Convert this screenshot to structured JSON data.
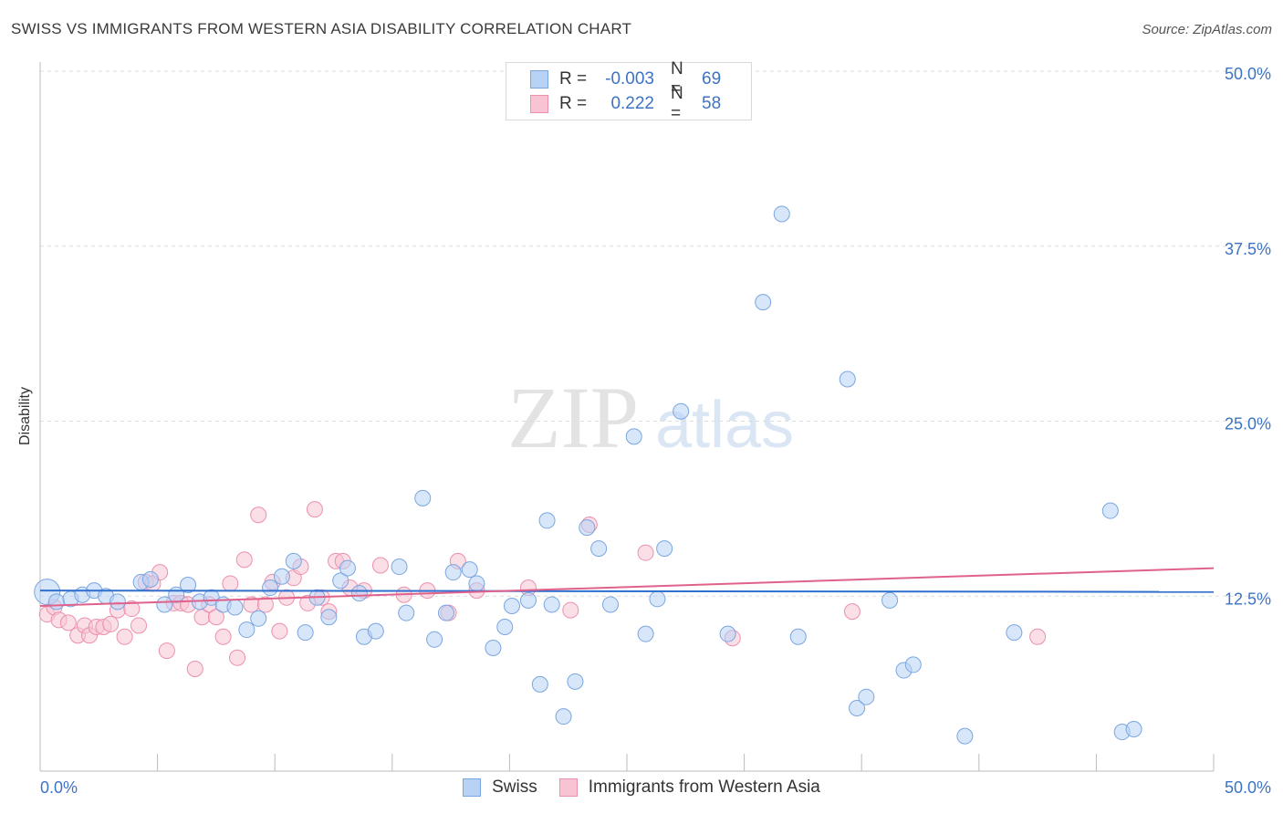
{
  "title": "SWISS VS IMMIGRANTS FROM WESTERN ASIA DISABILITY CORRELATION CHART",
  "source": "Source: ZipAtlas.com",
  "watermark": {
    "zip": "ZIP",
    "atlas": "atlas"
  },
  "colors": {
    "swiss_fill": "#b8d2f5",
    "swiss_stroke": "#7aa6e0",
    "swiss_line": "#2f6fce",
    "immig_fill": "#f8c4d4",
    "immig_stroke": "#ec90ad",
    "immig_line": "#e0628c",
    "tick_label": "#3d73c4",
    "grid": "#dddddd"
  },
  "legend": {
    "rows": [
      {
        "r_label": "R =",
        "r_value": "-0.003",
        "n_label": "N =",
        "n_value": "69"
      },
      {
        "r_label": "R =",
        "r_value": "0.222",
        "n_label": "N =",
        "n_value": "58"
      }
    ]
  },
  "bottom_legend": {
    "swiss": "Swiss",
    "immig": "Immigrants from Western Asia"
  },
  "chart_data": {
    "type": "scatter",
    "title": "SWISS VS IMMIGRANTS FROM WESTERN ASIA DISABILITY CORRELATION CHART",
    "xlabel": "",
    "ylabel": "Disability",
    "xlim": [
      0,
      50
    ],
    "ylim": [
      0,
      50
    ],
    "x_tick_labels": [
      "0.0%",
      "50.0%"
    ],
    "y_ticks": [
      12.5,
      25.0,
      37.5,
      50.0
    ],
    "y_tick_labels": [
      "12.5%",
      "25.0%",
      "37.5%",
      "50.0%"
    ],
    "grid": true,
    "legend_placement": "top-center",
    "series": [
      {
        "name": "Swiss",
        "r": -0.003,
        "n": 69,
        "trend": [
          [
            0,
            12.9
          ],
          [
            50,
            12.8
          ]
        ],
        "points": [
          [
            0.3,
            12.8
          ],
          [
            0.7,
            12.1
          ],
          [
            1.3,
            12.3
          ],
          [
            1.8,
            12.6
          ],
          [
            2.3,
            12.9
          ],
          [
            2.8,
            12.5
          ],
          [
            3.3,
            12.1
          ],
          [
            4.3,
            13.5
          ],
          [
            4.7,
            13.7
          ],
          [
            5.3,
            11.9
          ],
          [
            5.8,
            12.6
          ],
          [
            6.3,
            13.3
          ],
          [
            6.8,
            12.1
          ],
          [
            7.3,
            12.4
          ],
          [
            7.8,
            11.9
          ],
          [
            8.3,
            11.7
          ],
          [
            8.8,
            10.1
          ],
          [
            9.3,
            10.9
          ],
          [
            9.8,
            13.1
          ],
          [
            10.3,
            13.9
          ],
          [
            10.8,
            15.0
          ],
          [
            11.3,
            9.9
          ],
          [
            11.8,
            12.4
          ],
          [
            12.3,
            11.0
          ],
          [
            12.8,
            13.6
          ],
          [
            13.1,
            14.5
          ],
          [
            13.6,
            12.7
          ],
          [
            13.8,
            9.6
          ],
          [
            14.3,
            10.0
          ],
          [
            15.3,
            14.6
          ],
          [
            15.6,
            11.3
          ],
          [
            16.3,
            19.5
          ],
          [
            16.8,
            9.4
          ],
          [
            17.3,
            11.3
          ],
          [
            17.6,
            14.2
          ],
          [
            18.3,
            14.4
          ],
          [
            18.6,
            13.4
          ],
          [
            19.3,
            8.8
          ],
          [
            19.8,
            10.3
          ],
          [
            20.1,
            11.8
          ],
          [
            20.8,
            12.2
          ],
          [
            21.3,
            6.2
          ],
          [
            21.6,
            17.9
          ],
          [
            21.8,
            11.9
          ],
          [
            22.3,
            3.9
          ],
          [
            22.8,
            6.4
          ],
          [
            23.3,
            17.4
          ],
          [
            23.8,
            15.9
          ],
          [
            24.3,
            11.9
          ],
          [
            25.3,
            23.9
          ],
          [
            25.8,
            9.8
          ],
          [
            26.3,
            12.3
          ],
          [
            26.6,
            15.9
          ],
          [
            27.3,
            25.7
          ],
          [
            29.3,
            9.8
          ],
          [
            30.8,
            33.5
          ],
          [
            31.6,
            39.8
          ],
          [
            32.3,
            9.6
          ],
          [
            34.4,
            28.0
          ],
          [
            34.8,
            4.5
          ],
          [
            35.2,
            5.3
          ],
          [
            36.2,
            12.2
          ],
          [
            36.8,
            7.2
          ],
          [
            37.2,
            7.6
          ],
          [
            39.4,
            2.5
          ],
          [
            41.5,
            9.9
          ],
          [
            45.6,
            18.6
          ],
          [
            46.1,
            2.8
          ],
          [
            46.6,
            3.0
          ]
        ]
      },
      {
        "name": "Immigrants from Western Asia",
        "r": 0.222,
        "n": 58,
        "trend": [
          [
            0,
            11.8
          ],
          [
            50,
            14.5
          ]
        ],
        "points": [
          [
            0.3,
            11.2
          ],
          [
            0.6,
            11.7
          ],
          [
            0.8,
            10.8
          ],
          [
            1.2,
            10.6
          ],
          [
            1.6,
            9.7
          ],
          [
            1.9,
            10.4
          ],
          [
            2.1,
            9.7
          ],
          [
            2.4,
            10.3
          ],
          [
            2.7,
            10.3
          ],
          [
            3.0,
            10.5
          ],
          [
            3.3,
            11.5
          ],
          [
            3.6,
            9.6
          ],
          [
            3.9,
            11.6
          ],
          [
            4.2,
            10.4
          ],
          [
            4.5,
            13.5
          ],
          [
            4.8,
            13.4
          ],
          [
            5.1,
            14.2
          ],
          [
            5.4,
            8.6
          ],
          [
            5.7,
            12.0
          ],
          [
            6.0,
            12.0
          ],
          [
            6.3,
            11.9
          ],
          [
            6.6,
            7.3
          ],
          [
            6.9,
            11.0
          ],
          [
            7.2,
            11.9
          ],
          [
            7.5,
            11.0
          ],
          [
            7.8,
            9.6
          ],
          [
            8.1,
            13.4
          ],
          [
            8.4,
            8.1
          ],
          [
            8.7,
            15.1
          ],
          [
            9.0,
            11.9
          ],
          [
            9.3,
            18.3
          ],
          [
            9.6,
            11.9
          ],
          [
            9.9,
            13.5
          ],
          [
            10.2,
            10.0
          ],
          [
            10.5,
            12.4
          ],
          [
            10.8,
            13.8
          ],
          [
            11.1,
            14.6
          ],
          [
            11.4,
            12.0
          ],
          [
            11.7,
            18.7
          ],
          [
            12.0,
            12.4
          ],
          [
            12.3,
            11.4
          ],
          [
            12.6,
            15.0
          ],
          [
            12.9,
            15.0
          ],
          [
            13.2,
            13.1
          ],
          [
            13.8,
            12.9
          ],
          [
            14.5,
            14.7
          ],
          [
            15.5,
            12.6
          ],
          [
            16.5,
            12.9
          ],
          [
            17.4,
            11.3
          ],
          [
            17.8,
            15.0
          ],
          [
            18.6,
            12.9
          ],
          [
            20.8,
            13.1
          ],
          [
            22.6,
            11.5
          ],
          [
            23.4,
            17.6
          ],
          [
            25.8,
            15.6
          ],
          [
            29.5,
            9.5
          ],
          [
            34.6,
            11.4
          ],
          [
            42.5,
            9.6
          ]
        ]
      }
    ]
  }
}
